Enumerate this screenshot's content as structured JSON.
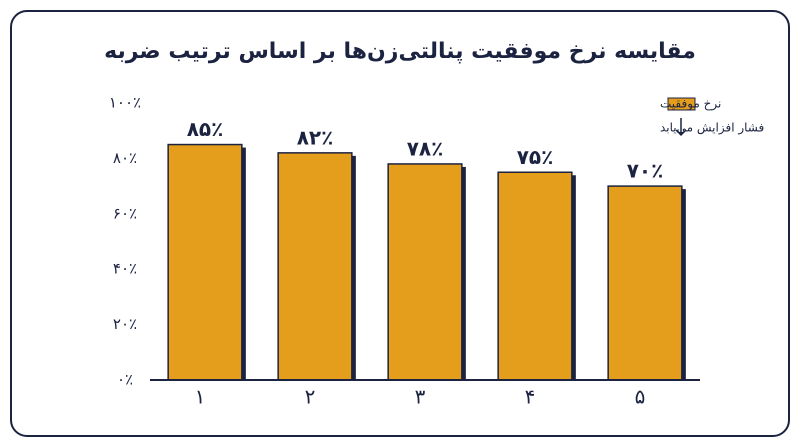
{
  "chart_data": {
    "type": "bar",
    "title": "مقایسه نرخ موفقیت پنالتی‌زن‌ها بر اساس ترتیب ضربه",
    "categories": [
      "۱",
      "۲",
      "۳",
      "۴",
      "۵"
    ],
    "series": [
      {
        "name": "نرخ موفقیت",
        "color": "#e59d1c",
        "values": [
          85,
          82,
          78,
          75,
          70
        ],
        "value_labels": [
          "۸۵٪",
          "۸۲٪",
          "۷۸٪",
          "۷۵٪",
          "۷۰٪"
        ]
      }
    ],
    "annotation": "فشار افزایش می‌یابد",
    "ylim": [
      0,
      100
    ],
    "yticks": [
      {
        "value": 0,
        "label": "۰٪"
      },
      {
        "value": 20,
        "label": "۲۰٪"
      },
      {
        "value": 40,
        "label": "۴۰٪"
      },
      {
        "value": 60,
        "label": "۶۰٪"
      },
      {
        "value": 80,
        "label": "۸۰٪"
      },
      {
        "value": 100,
        "label": "۱۰۰٪"
      }
    ],
    "grid": false,
    "legend": "top-right"
  }
}
